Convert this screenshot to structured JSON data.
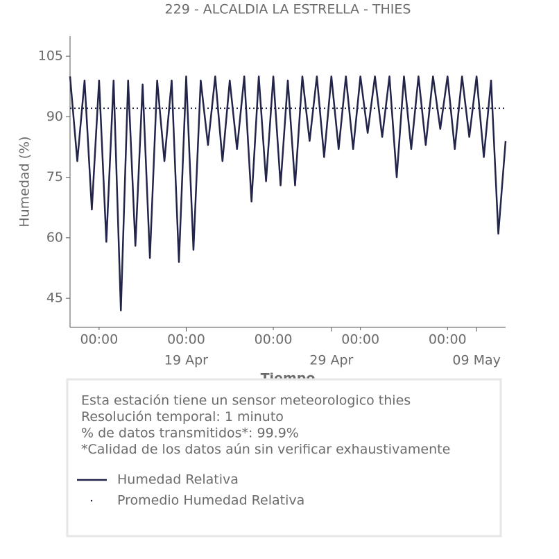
{
  "chart_data": {
    "type": "line",
    "title": "229 - ALCALDIA LA ESTRELLA - THIES",
    "xlabel": "Tiempo",
    "ylabel": "Humedad (%)",
    "x": [
      "11 Apr 00:00",
      "11 Apr 12:00",
      "12 Apr 00:00",
      "12 Apr 12:00",
      "13 Apr 00:00",
      "13 Apr 12:00",
      "14 Apr 00:00",
      "14 Apr 12:00",
      "15 Apr 00:00",
      "15 Apr 12:00",
      "16 Apr 00:00",
      "16 Apr 12:00",
      "17 Apr 00:00",
      "17 Apr 12:00",
      "18 Apr 00:00",
      "18 Apr 12:00",
      "19 Apr 00:00",
      "19 Apr 12:00",
      "20 Apr 00:00",
      "20 Apr 12:00",
      "21 Apr 00:00",
      "21 Apr 12:00",
      "22 Apr 00:00",
      "22 Apr 12:00",
      "23 Apr 00:00",
      "23 Apr 12:00",
      "24 Apr 00:00",
      "24 Apr 12:00",
      "25 Apr 00:00",
      "25 Apr 12:00",
      "26 Apr 00:00",
      "26 Apr 12:00",
      "27 Apr 00:00",
      "27 Apr 12:00",
      "28 Apr 00:00",
      "28 Apr 12:00",
      "29 Apr 00:00",
      "29 Apr 12:00",
      "30 Apr 00:00",
      "30 Apr 12:00",
      "1 May 00:00",
      "1 May 12:00",
      "2 May 00:00",
      "2 May 12:00",
      "3 May 00:00",
      "3 May 12:00",
      "4 May 00:00",
      "4 May 12:00",
      "5 May 00:00",
      "5 May 12:00",
      "6 May 00:00",
      "6 May 12:00",
      "7 May 00:00",
      "7 May 12:00",
      "8 May 00:00",
      "8 May 12:00",
      "9 May 00:00",
      "9 May 12:00",
      "10 May 00:00",
      "10 May 12:00",
      "11 May 00:00"
    ],
    "series": [
      {
        "name": "Humedad Relativa",
        "color": "#22244a",
        "values": [
          100,
          79,
          99,
          67,
          99,
          59,
          99,
          42,
          99,
          58,
          98,
          55,
          99,
          79,
          99,
          54,
          100,
          57,
          99,
          83,
          100,
          79,
          99,
          82,
          100,
          69,
          100,
          74,
          100,
          73,
          99,
          73,
          100,
          84,
          100,
          80,
          100,
          82,
          100,
          82,
          100,
          86,
          100,
          85,
          100,
          75,
          100,
          82,
          100,
          83,
          100,
          87,
          100,
          82,
          100,
          85,
          100,
          80,
          99,
          61,
          84
        ]
      }
    ],
    "reference_lines": [
      {
        "name": "Promedio Humedad Relativa",
        "value": 92.1,
        "color": "#22244a",
        "style": "dotted"
      }
    ],
    "xlim": [
      "11 Apr 00:00",
      "11 May 00:00"
    ],
    "xticks_minor": [
      {
        "value": "13 Apr 00:00",
        "label": "00:00"
      },
      {
        "value": "19 Apr 00:00",
        "label": "00:00"
      },
      {
        "value": "25 Apr 00:00",
        "label": "00:00"
      },
      {
        "value": "1 May 00:00",
        "label": "00:00"
      },
      {
        "value": "7 May 00:00",
        "label": "00:00"
      }
    ],
    "xticks": [
      {
        "value": "19 Apr 00:00",
        "label": "19 Apr"
      },
      {
        "value": "29 Apr 00:00",
        "label": "29 Apr"
      },
      {
        "value": "9 May 00:00",
        "label": "09 May"
      }
    ],
    "ylim": [
      37.8,
      110
    ],
    "yticks": [
      45,
      60,
      75,
      90,
      105
    ],
    "notes": [
      "Esta estación tiene un sensor meteorologico thies",
      "Resolución temporal: 1 minuto",
      "% de datos transmitidos*: 99.9%",
      "*Calidad de los datos aún sin verificar exhaustivamente"
    ]
  }
}
